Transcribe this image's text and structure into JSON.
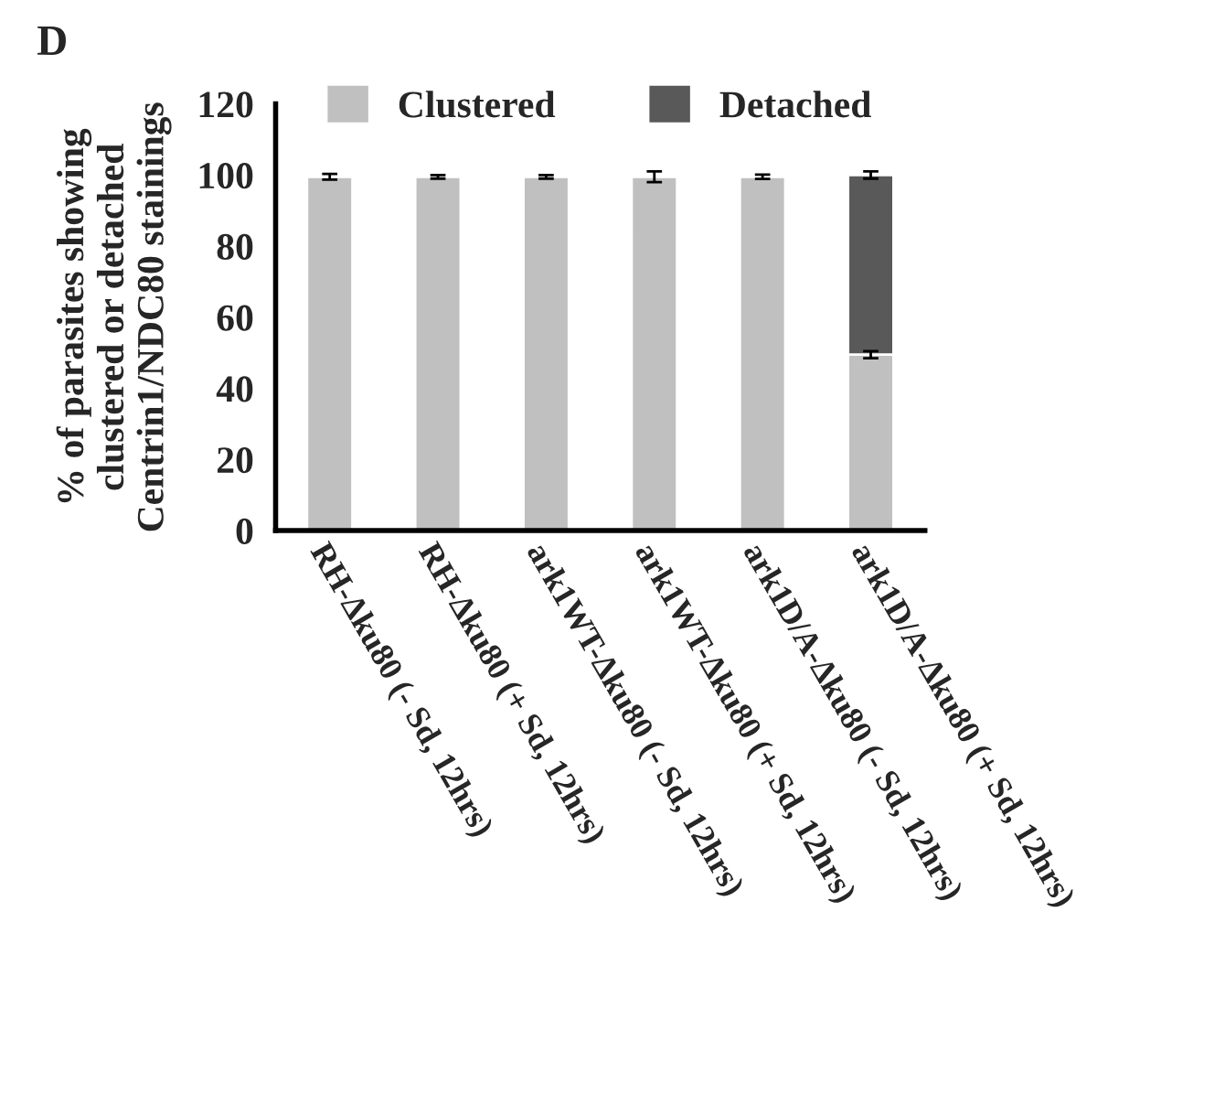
{
  "chart_data": {
    "type": "bar",
    "title": "D",
    "ylabel": "% of parasites showing\nclustered or detached\nCentrin1/NDC80 stainings",
    "categories": [
      "RH-Δku80 (- Sd, 12hrs)",
      "RH-Δku80 (+ Sd, 12hrs)",
      "ark1WT-Δku80 (- Sd, 12hrs)",
      "ark1WT-Δku80 (+ Sd, 12hrs)",
      "ark1D/A-Δku80 (- Sd, 12hrs)",
      "ark1D/A-Δku80 (+ Sd, 12hrs)"
    ],
    "stacked": true,
    "series": [
      {
        "name": "Clustered",
        "color": "#c0c0c0",
        "values": [
          99.5,
          99.5,
          99.5,
          99.5,
          99.5,
          49.5
        ],
        "errors": [
          0.8,
          0.5,
          0.5,
          1.5,
          0.6,
          1
        ]
      },
      {
        "name": "Detached",
        "color": "#595959",
        "values": [
          null,
          null,
          null,
          null,
          null,
          50.5
        ],
        "errors": [
          null,
          null,
          null,
          null,
          null,
          1
        ]
      }
    ],
    "ylim": [
      0,
      120
    ],
    "yticks": [
      0,
      20,
      40,
      60,
      80,
      100,
      120
    ],
    "grid": false,
    "legend": "top"
  }
}
